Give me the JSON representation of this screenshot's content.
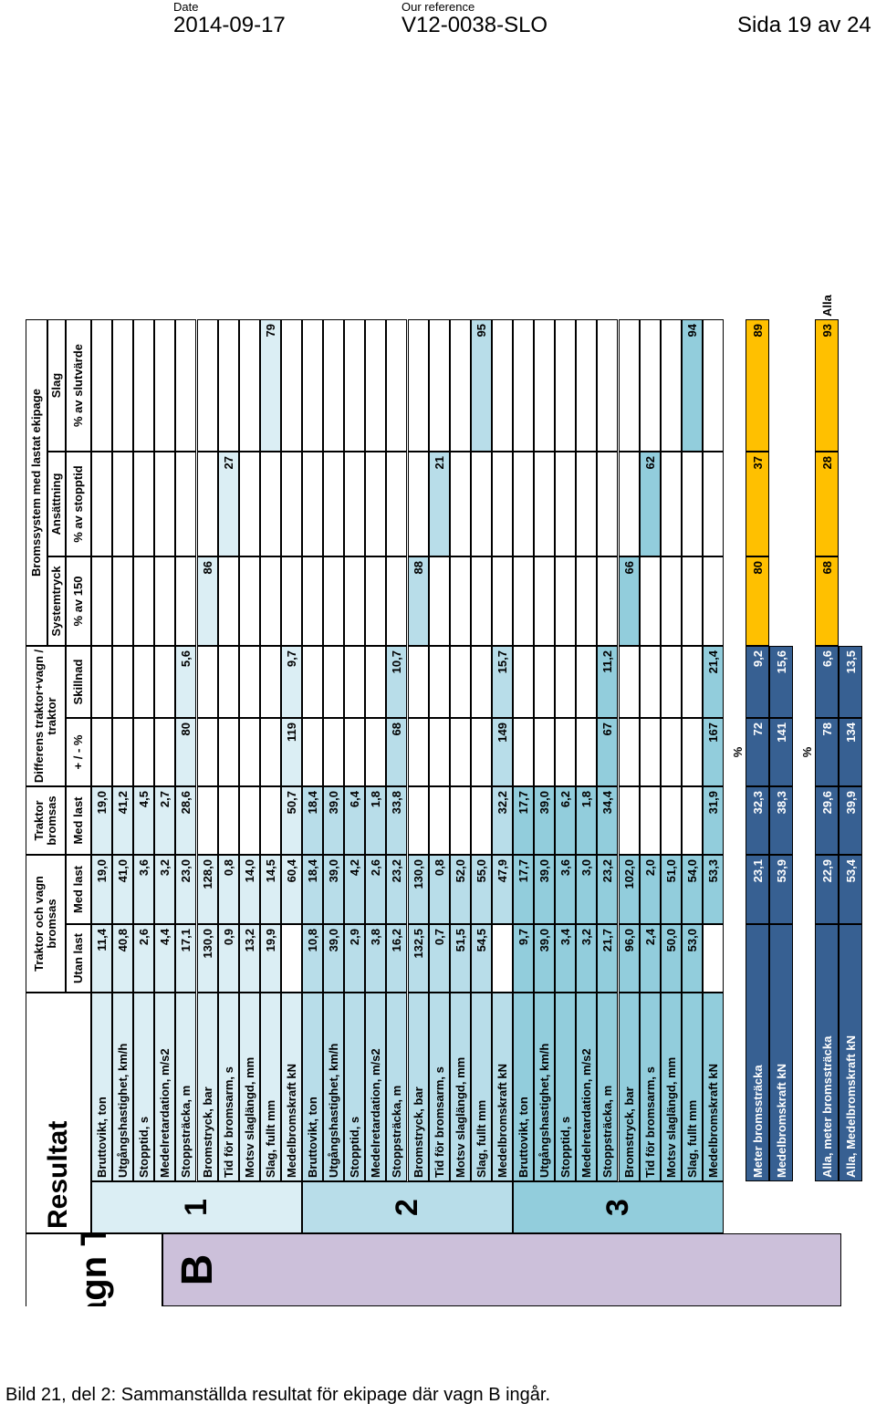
{
  "header": {
    "date_label": "Date",
    "date": "2014-09-17",
    "ref_label": "Our reference",
    "reference": "V12-0038-SLO",
    "page": "Sida 19 av 24"
  },
  "caption": "Bild 21, del 2: Sammanställda resultat för ekipage där vagn B ingår.",
  "sheet": {
    "title": "Vagn TR",
    "vehicle": "B",
    "resultat": "Resultat",
    "headers": {
      "tv": "Traktor och vagn bromsas",
      "tr": "Traktor bromsas",
      "diff": "Differens traktor+vagn / traktor",
      "bs": "Bromssystem med lastat ekipage",
      "utan_last": "Utan last",
      "med_last": "Med last",
      "med_last2": "Med last",
      "plusminus": "+ / - %",
      "skillnad": "Skillnad",
      "systemtryck": "Systemtryck",
      "ansattning": "Ansättning",
      "slag": "Slag",
      "pct150": "% av 150",
      "stopptid": "% av stopptid",
      "slutvarde": "% av slutvärde"
    },
    "row_labels": [
      "Bruttovikt, ton",
      "Utgångshastighet, km/h",
      "Stopptid, s",
      "Medelretardation, m/s2",
      "Stoppsträcka, m",
      "Bromstryck, bar",
      "Tid för bromsarm, s",
      "Motsv slaglängd, mm",
      "Slag, fullt mm",
      "Medelbromskraft kN"
    ],
    "groups": [
      {
        "id": "1",
        "utan": [
          "11,4",
          "40,8",
          "2,6",
          "4,4",
          "17,1",
          "130,0",
          "0,9",
          "13,2",
          "19,9",
          ""
        ],
        "med": [
          "19,0",
          "41,0",
          "3,6",
          "3,2",
          "23,0",
          "128,0",
          "0,8",
          "14,0",
          "14,5",
          "60,4"
        ],
        "tr": [
          "19,0",
          "41,2",
          "4,5",
          "2,7",
          "28,6",
          "",
          "",
          "",
          "",
          "50,7"
        ],
        "pm": [
          "",
          "",
          "",
          "",
          "80",
          "",
          "",
          "",
          "",
          "119"
        ],
        "sk": [
          "",
          "",
          "",
          "",
          "5,6",
          "",
          "",
          "",
          "",
          "9,7"
        ],
        "sys": [
          "",
          "",
          "",
          "",
          "",
          "86",
          "",
          "",
          "",
          ""
        ],
        "ans": [
          "",
          "",
          "",
          "",
          "",
          "",
          "27",
          "",
          "",
          ""
        ],
        "slag": [
          "",
          "",
          "",
          "",
          "",
          "",
          "",
          "",
          "79",
          ""
        ]
      },
      {
        "id": "2",
        "utan": [
          "10,8",
          "39,0",
          "2,9",
          "3,8",
          "16,2",
          "132,5",
          "0,7",
          "51,5",
          "54,5",
          ""
        ],
        "med": [
          "18,4",
          "39,0",
          "4,2",
          "2,6",
          "23,2",
          "130,0",
          "0,8",
          "52,0",
          "55,0",
          "47,9"
        ],
        "tr": [
          "18,4",
          "39,0",
          "6,4",
          "1,8",
          "33,8",
          "",
          "",
          "",
          "",
          "32,2"
        ],
        "pm": [
          "",
          "",
          "",
          "",
          "68",
          "",
          "",
          "",
          "",
          "149"
        ],
        "sk": [
          "",
          "",
          "",
          "",
          "10,7",
          "",
          "",
          "",
          "",
          "15,7"
        ],
        "sys": [
          "",
          "",
          "",
          "",
          "",
          "88",
          "",
          "",
          "",
          ""
        ],
        "ans": [
          "",
          "",
          "",
          "",
          "",
          "",
          "21",
          "",
          "",
          ""
        ],
        "slag": [
          "",
          "",
          "",
          "",
          "",
          "",
          "",
          "",
          "95",
          ""
        ]
      },
      {
        "id": "3",
        "utan": [
          "9,7",
          "39,0",
          "3,4",
          "3,2",
          "21,7",
          "96,0",
          "2,4",
          "50,0",
          "53,0",
          ""
        ],
        "med": [
          "17,7",
          "39,0",
          "3,6",
          "3,0",
          "23,2",
          "102,0",
          "2,0",
          "51,0",
          "54,0",
          "53,3"
        ],
        "tr": [
          "17,7",
          "39,0",
          "6,2",
          "1,8",
          "34,4",
          "",
          "",
          "",
          "",
          "31,9"
        ],
        "pm": [
          "",
          "",
          "",
          "",
          "67",
          "",
          "",
          "",
          "",
          "167"
        ],
        "sk": [
          "",
          "",
          "",
          "",
          "11,2",
          "",
          "",
          "",
          "",
          "21,4"
        ],
        "sys": [
          "",
          "",
          "",
          "",
          "",
          "66",
          "",
          "",
          "",
          ""
        ],
        "ans": [
          "",
          "",
          "",
          "",
          "",
          "",
          "62",
          "",
          "",
          ""
        ],
        "slag": [
          "",
          "",
          "",
          "",
          "",
          "",
          "",
          "",
          "94",
          ""
        ]
      }
    ],
    "pct_label": "%",
    "summary": [
      {
        "label": "Meter bromssträcka",
        "med": "23,1",
        "tr": "32,3",
        "pm": "72",
        "sk": "9,2",
        "sys": "80",
        "ans": "37",
        "slag": "89"
      },
      {
        "label": "Medelbromskraft kN",
        "med": "53,9",
        "tr": "38,3",
        "pm": "141",
        "sk": "15,6"
      }
    ],
    "pct_label2": "%",
    "alla": [
      {
        "label": "Alla, meter bromssträcka",
        "med": "22,9",
        "tr": "29,6",
        "pm": "78",
        "sk": "6,6",
        "sys": "68",
        "ans": "28",
        "slag": "93",
        "extra": "Alla"
      },
      {
        "label": "Alla, Medelbromskraft kN",
        "med": "53,4",
        "tr": "39,9",
        "pm": "134",
        "sk": "13,5"
      }
    ],
    "colors": {
      "g1": "#dbeef4",
      "g2": "#b8dde9",
      "g3": "#92cddc",
      "lav": "#ccc0da",
      "blue": "#376092",
      "orange": "#ffc000"
    }
  }
}
